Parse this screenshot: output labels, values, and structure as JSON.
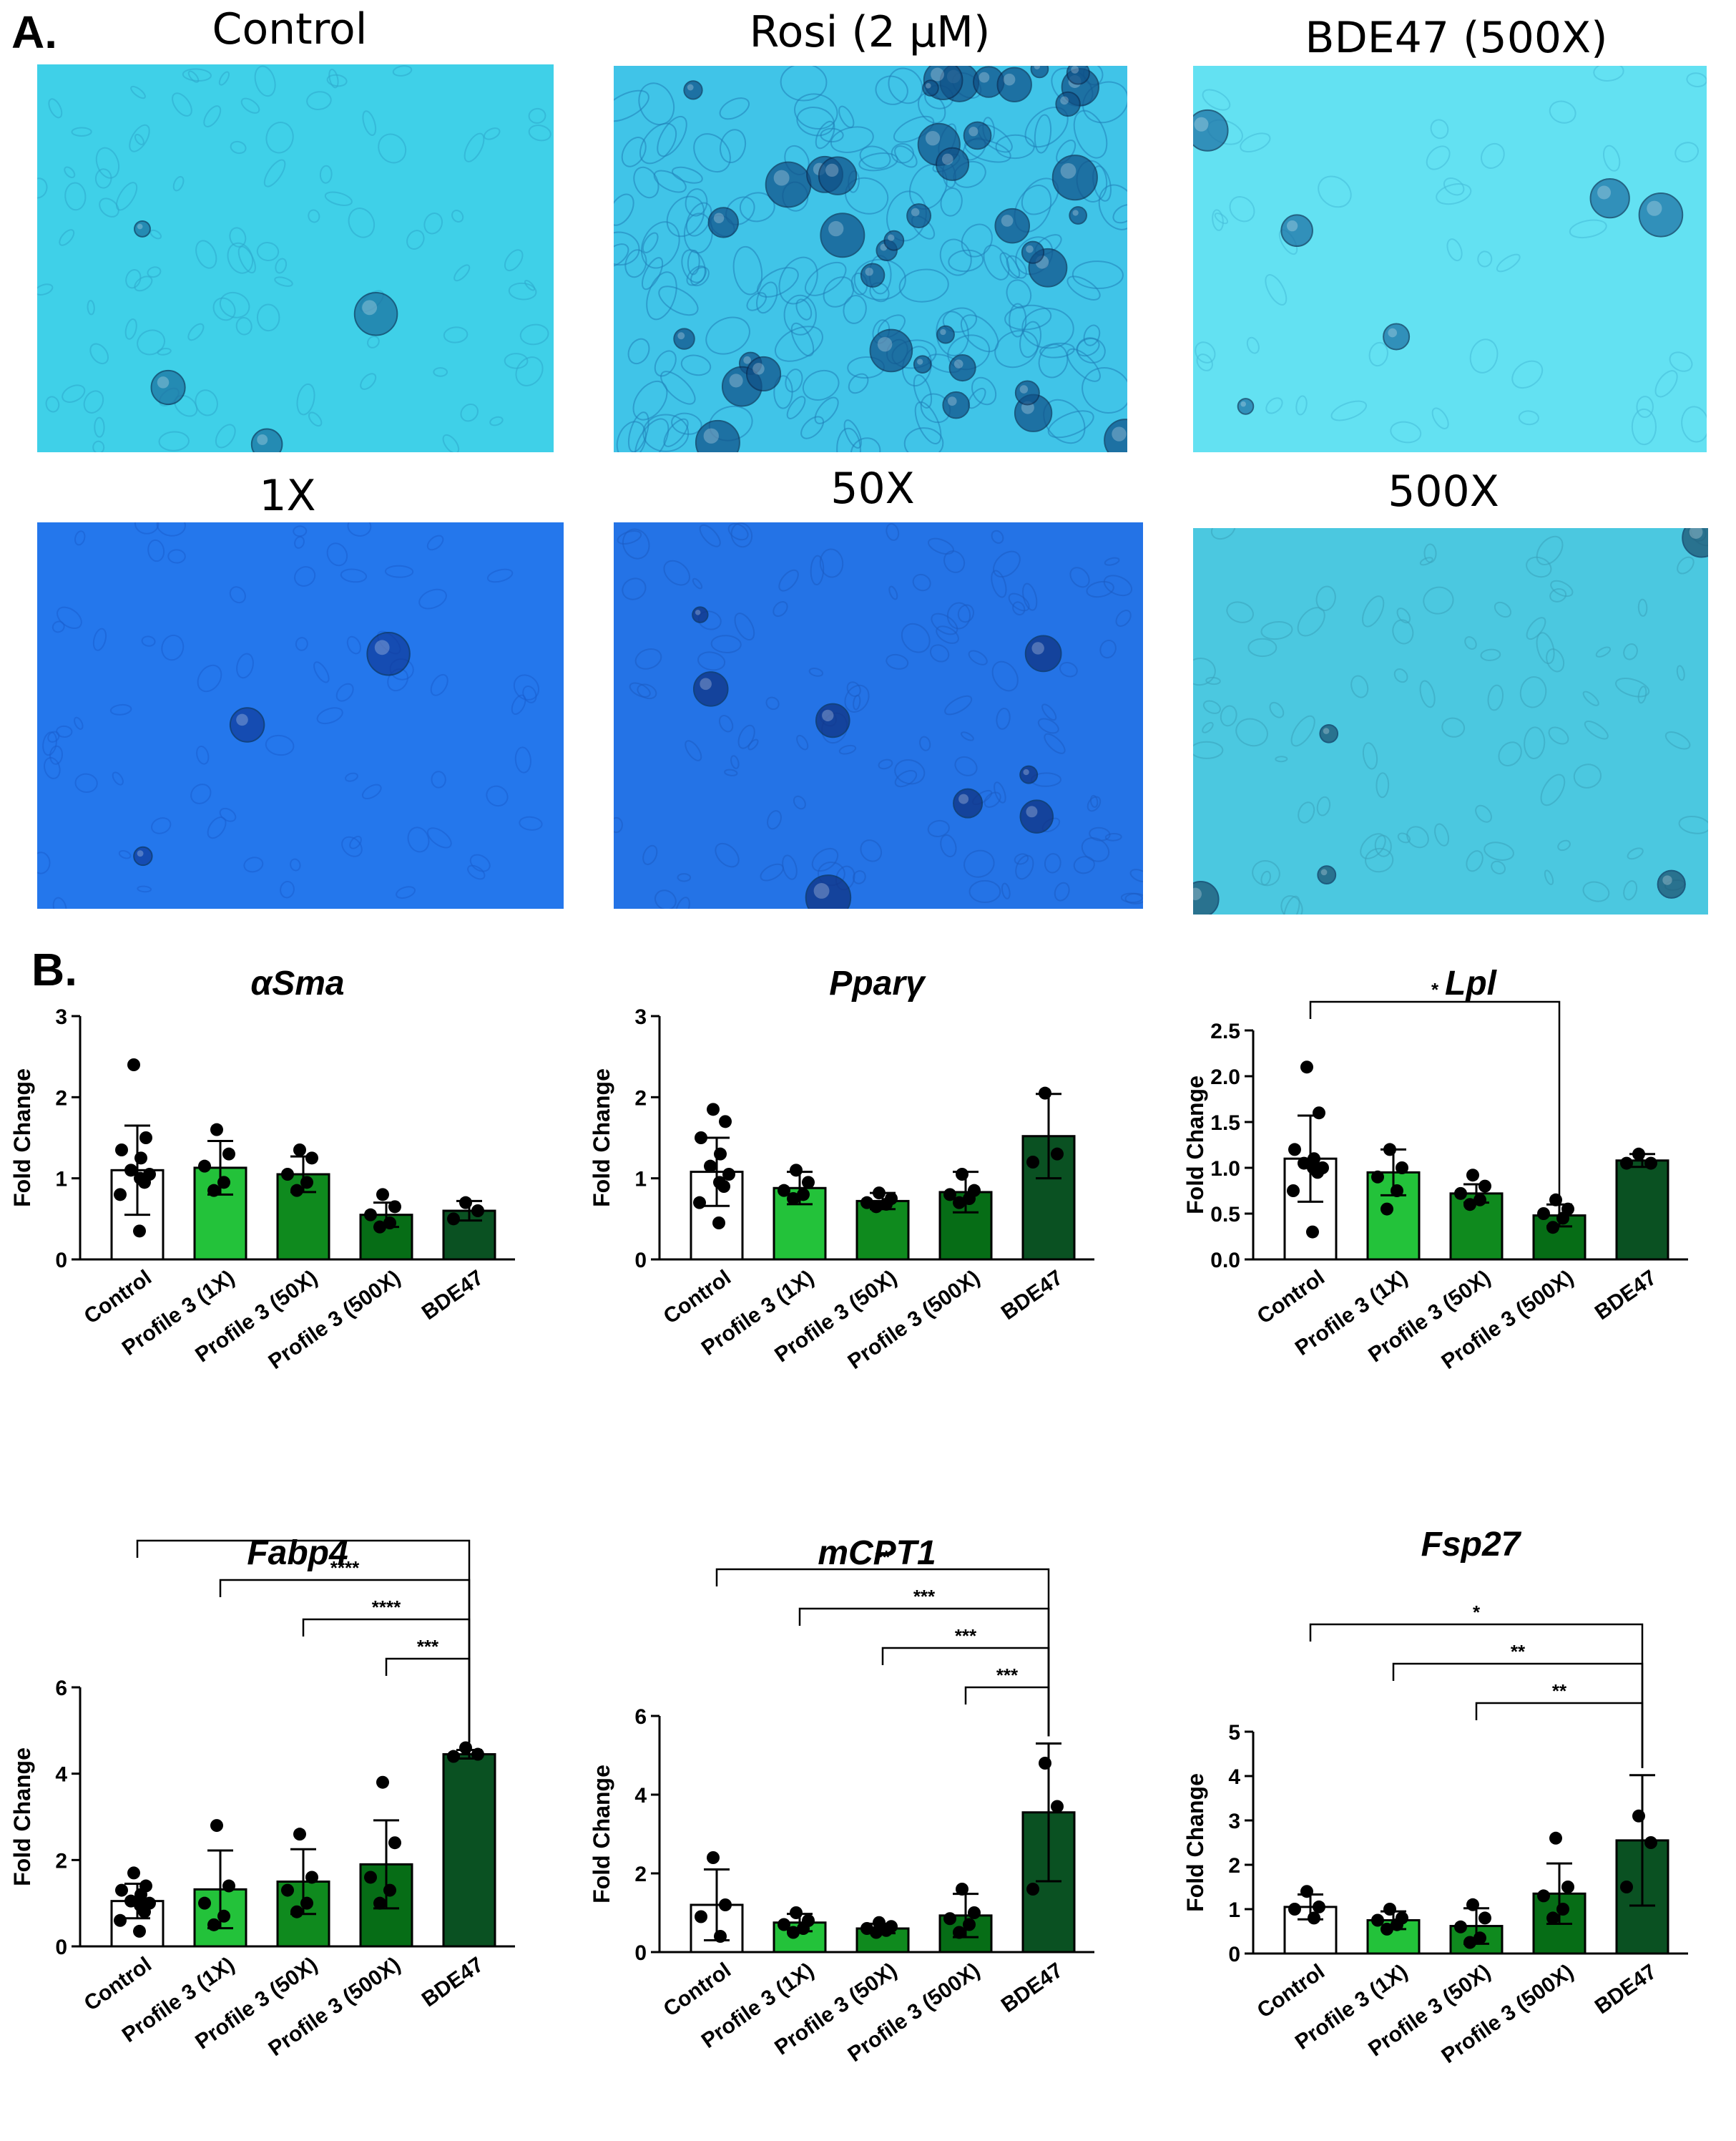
{
  "panels": {
    "a_label": "A.",
    "b_label": "B."
  },
  "images": [
    {
      "title": "Control",
      "bg": "#3fd0e8"
    },
    {
      "title": "Rosi (2 μM)",
      "bg": "#40c4e8"
    },
    {
      "title": "BDE47 (500X)",
      "bg": "#63e1f2"
    },
    {
      "title": "1X",
      "bg": "#2477ec"
    },
    {
      "title": "50X",
      "bg": "#2473e6"
    },
    {
      "title": "500X",
      "bg": "#4bc8e0"
    }
  ],
  "colors": {
    "control": "#ffffff",
    "p1": "#23c23a",
    "p50": "#0f8a1e",
    "p500": "#066d16",
    "bde": "#0a5122"
  },
  "chart_data": [
    {
      "type": "bar",
      "title": "αSma",
      "ylabel": "Fold Change",
      "categories": [
        "Control",
        "Profile 3 (1X)",
        "Profile 3 (50X)",
        "Profile 3 (500X)",
        "BDE47"
      ],
      "yticks": [
        "0",
        "1",
        "2",
        "3"
      ],
      "ylim": [
        0,
        3
      ],
      "values": [
        1.1,
        1.13,
        1.05,
        0.55,
        0.6
      ],
      "errors": [
        0.55,
        0.33,
        0.22,
        0.15,
        0.12
      ],
      "points": [
        [
          2.4,
          1.5,
          1.35,
          1.25,
          1.1,
          1.05,
          1.0,
          0.95,
          0.8,
          0.35
        ],
        [
          1.6,
          1.3,
          1.15,
          0.95,
          0.85
        ],
        [
          1.35,
          1.25,
          1.05,
          0.95,
          0.85
        ],
        [
          0.8,
          0.65,
          0.55,
          0.45,
          0.4
        ],
        [
          0.7,
          0.6,
          0.5
        ]
      ],
      "comparisons": []
    },
    {
      "type": "bar",
      "title": "Pparγ",
      "ylabel": "Fold Change",
      "categories": [
        "Control",
        "Profile 3 (1X)",
        "Profile 3 (50X)",
        "Profile 3 (500X)",
        "BDE47"
      ],
      "yticks": [
        "0",
        "1",
        "2",
        "3"
      ],
      "ylim": [
        0,
        3
      ],
      "values": [
        1.08,
        0.88,
        0.72,
        0.83,
        1.52
      ],
      "errors": [
        0.42,
        0.2,
        0.1,
        0.25,
        0.52
      ],
      "points": [
        [
          1.85,
          1.7,
          1.5,
          1.3,
          1.15,
          1.05,
          0.95,
          0.9,
          0.7,
          0.45
        ],
        [
          1.1,
          0.95,
          0.85,
          0.8,
          0.75
        ],
        [
          0.82,
          0.75,
          0.7,
          0.68,
          0.65
        ],
        [
          1.05,
          0.85,
          0.8,
          0.75,
          0.7
        ],
        [
          2.05,
          1.3,
          1.2
        ]
      ],
      "comparisons": []
    },
    {
      "type": "bar",
      "title": "Lpl",
      "ylabel": "Fold Change",
      "categories": [
        "Control",
        "Profile 3 (1X)",
        "Profile 3 (50X)",
        "Profile 3 (500X)",
        "BDE47"
      ],
      "yticks": [
        "0.0",
        "0.5",
        "1.0",
        "1.5",
        "2.0",
        "2.5"
      ],
      "ylim": [
        0,
        2.5
      ],
      "values": [
        1.1,
        0.95,
        0.72,
        0.48,
        1.08
      ],
      "errors": [
        0.47,
        0.25,
        0.1,
        0.12,
        0.07
      ],
      "points": [
        [
          2.1,
          1.6,
          1.2,
          1.1,
          1.05,
          1.0,
          1.0,
          0.95,
          0.75,
          0.3
        ],
        [
          1.2,
          1.0,
          0.9,
          0.75,
          0.55
        ],
        [
          0.92,
          0.8,
          0.72,
          0.65,
          0.6
        ],
        [
          0.65,
          0.55,
          0.5,
          0.45,
          0.35
        ],
        [
          1.15,
          1.05,
          1.05
        ]
      ],
      "comparisons": [
        {
          "from": 0,
          "to": 3,
          "label": "*"
        }
      ]
    },
    {
      "type": "bar",
      "title": "Fabp4",
      "ylabel": "Fold Change",
      "categories": [
        "Control",
        "Profile 3 (1X)",
        "Profile 3 (50X)",
        "Profile 3 (500X)",
        "BDE47"
      ],
      "yticks": [
        "0",
        "2",
        "4",
        "6"
      ],
      "ylim": [
        0,
        6
      ],
      "values": [
        1.05,
        1.32,
        1.5,
        1.9,
        4.45
      ],
      "errors": [
        0.4,
        0.9,
        0.75,
        1.02,
        0.1
      ],
      "points": [
        [
          1.7,
          1.4,
          1.3,
          1.2,
          1.05,
          1.0,
          0.95,
          0.8,
          0.6,
          0.35
        ],
        [
          2.8,
          1.4,
          1.0,
          0.7,
          0.5
        ],
        [
          2.6,
          1.6,
          1.3,
          1.0,
          0.8
        ],
        [
          3.8,
          2.4,
          1.6,
          1.3,
          1.0
        ],
        [
          4.6,
          4.45,
          4.4
        ]
      ],
      "comparisons": [
        {
          "from": 0,
          "to": 4,
          "label": "****"
        },
        {
          "from": 1,
          "to": 4,
          "label": "****"
        },
        {
          "from": 2,
          "to": 4,
          "label": "****"
        },
        {
          "from": 3,
          "to": 4,
          "label": "***"
        }
      ]
    },
    {
      "type": "bar",
      "title": "mCPT1",
      "ylabel": "Fold Change",
      "categories": [
        "Control",
        "Profile 3 (1X)",
        "Profile 3 (50X)",
        "Profile 3 (500X)",
        "BDE47"
      ],
      "yticks": [
        "0",
        "2",
        "4",
        "6"
      ],
      "ylim": [
        0,
        6
      ],
      "values": [
        1.2,
        0.75,
        0.6,
        0.93,
        3.55
      ],
      "errors": [
        0.9,
        0.22,
        0.12,
        0.55,
        1.75
      ],
      "points": [
        [
          2.4,
          1.2,
          0.9,
          0.4
        ],
        [
          1.0,
          0.8,
          0.7,
          0.6,
          0.5
        ],
        [
          0.75,
          0.65,
          0.6,
          0.55,
          0.5
        ],
        [
          1.6,
          1.0,
          0.85,
          0.7,
          0.5
        ],
        [
          4.8,
          3.7,
          1.6
        ]
      ],
      "comparisons": [
        {
          "from": 0,
          "to": 4,
          "label": "**"
        },
        {
          "from": 1,
          "to": 4,
          "label": "***"
        },
        {
          "from": 2,
          "to": 4,
          "label": "***"
        },
        {
          "from": 3,
          "to": 4,
          "label": "***"
        }
      ]
    },
    {
      "type": "bar",
      "title": "Fsp27",
      "ylabel": "Fold Change",
      "categories": [
        "Control",
        "Profile 3 (1X)",
        "Profile 3 (50X)",
        "Profile 3 (500X)",
        "BDE47"
      ],
      "yticks": [
        "0",
        "1",
        "2",
        "3",
        "4",
        "5"
      ],
      "ylim": [
        0,
        5
      ],
      "values": [
        1.05,
        0.75,
        0.62,
        1.35,
        2.55
      ],
      "errors": [
        0.28,
        0.2,
        0.4,
        0.68,
        1.47
      ],
      "points": [
        [
          1.4,
          1.05,
          1.0,
          0.8
        ],
        [
          1.0,
          0.8,
          0.75,
          0.65,
          0.55
        ],
        [
          1.1,
          0.8,
          0.6,
          0.35,
          0.25
        ],
        [
          2.6,
          1.5,
          1.3,
          1.0,
          0.8
        ],
        [
          3.1,
          2.5,
          1.5
        ]
      ],
      "comparisons": [
        {
          "from": 0,
          "to": 4,
          "label": "*"
        },
        {
          "from": 1,
          "to": 4,
          "label": "**"
        },
        {
          "from": 2,
          "to": 4,
          "label": "**"
        }
      ]
    }
  ]
}
